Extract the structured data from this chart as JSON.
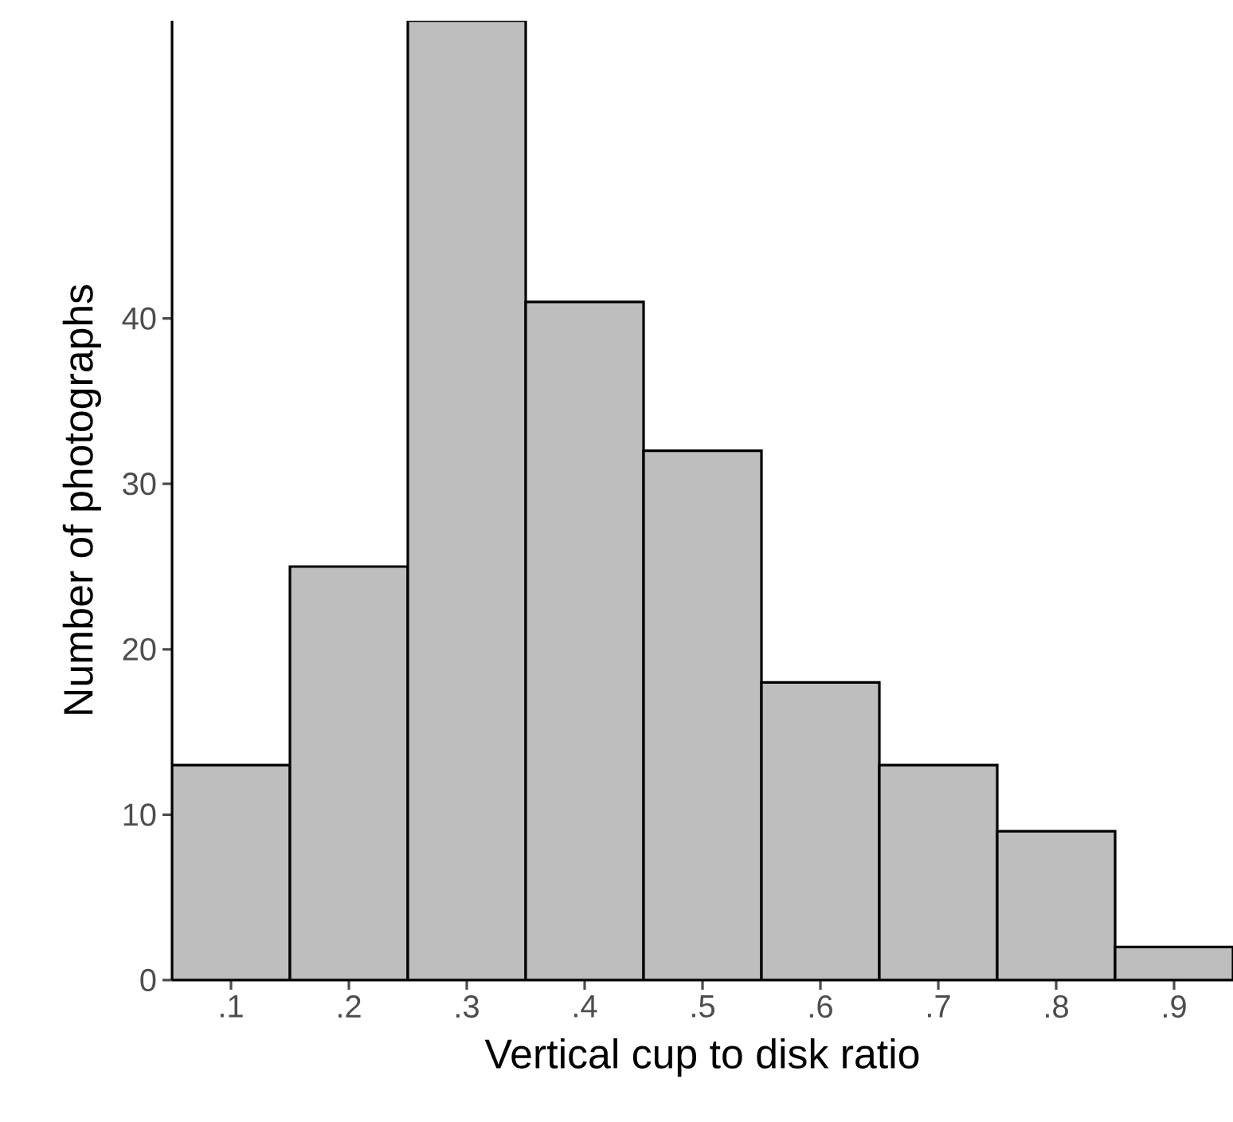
{
  "chart_data": {
    "type": "histogram",
    "xlabel": "Vertical cup to disk ratio",
    "ylabel": "Number of photographs",
    "bins": [
      0.05,
      0.15,
      0.25,
      0.35,
      0.45,
      0.55,
      0.65,
      0.75,
      0.85,
      0.95
    ],
    "values": [
      13,
      25,
      58,
      41,
      32,
      18,
      13,
      9,
      2
    ],
    "color": "#bebebe",
    "xlim": [
      0.05,
      0.95
    ],
    "ylim": [
      0,
      58
    ],
    "xticks": [
      {
        "value": 0.1,
        "label": ".1"
      },
      {
        "value": 0.2,
        "label": ".2"
      },
      {
        "value": 0.3,
        "label": ".3"
      },
      {
        "value": 0.4,
        "label": ".4"
      },
      {
        "value": 0.5,
        "label": ".5"
      },
      {
        "value": 0.6,
        "label": ".6"
      },
      {
        "value": 0.7,
        "label": ".7"
      },
      {
        "value": 0.8,
        "label": ".8"
      },
      {
        "value": 0.9,
        "label": ".9"
      }
    ],
    "yticks": [
      0,
      10,
      20,
      30,
      40
    ]
  }
}
